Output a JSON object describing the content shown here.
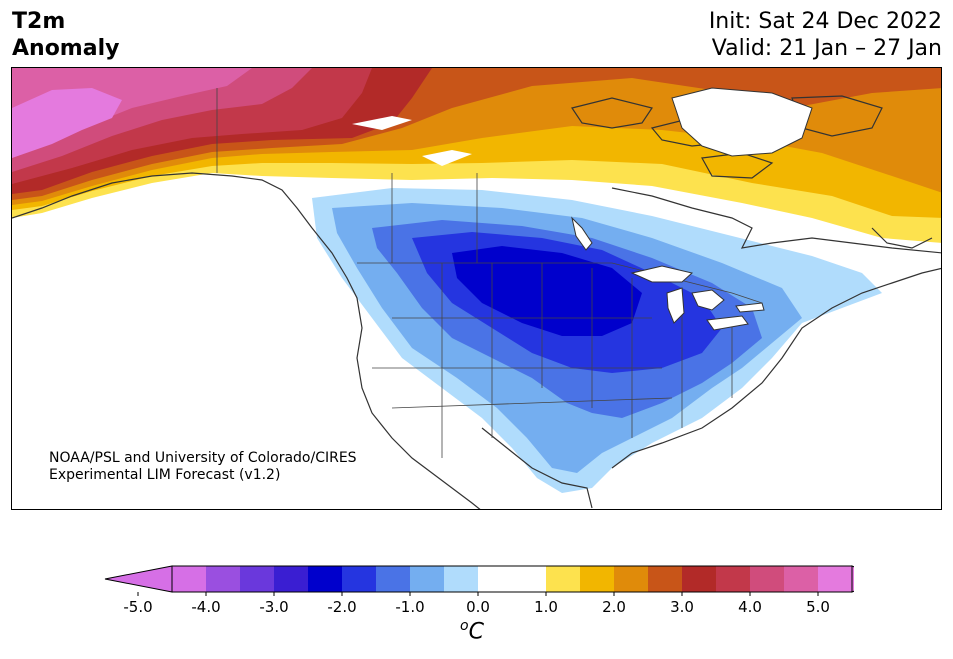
{
  "header": {
    "title_line1": "T2m",
    "title_line2": "Anomaly",
    "init": "Init: Sat 24 Dec 2022",
    "valid": "Valid: 21 Jan – 27 Jan"
  },
  "credit": {
    "line1": "NOAA/PSL and University of Colorado/CIRES",
    "line2": "Experimental LIM Forecast (v1.2)"
  },
  "colorbar": {
    "unit_base": "C",
    "unit_sup": "o",
    "ticks": [
      "-5.0",
      "-4.0",
      "-3.0",
      "-2.0",
      "-1.0",
      "0.0",
      "1.0",
      "2.0",
      "3.0",
      "4.0",
      "5.0"
    ],
    "colors": [
      "#d66fe6",
      "#9a4fe0",
      "#6a38dc",
      "#3a1ed2",
      "#0000cc",
      "#2535e0",
      "#4a73e6",
      "#74aef0",
      "#b0dcfc",
      "#ffffff",
      "#ffffff",
      "#fde24e",
      "#f2b600",
      "#e08b0a",
      "#c85518",
      "#b22a28",
      "#c2384a",
      "#d04c7c",
      "#dc60a6",
      "#e47ade"
    ],
    "extend_low": "#d66fe6",
    "extend_high": "#e47ade"
  }
}
